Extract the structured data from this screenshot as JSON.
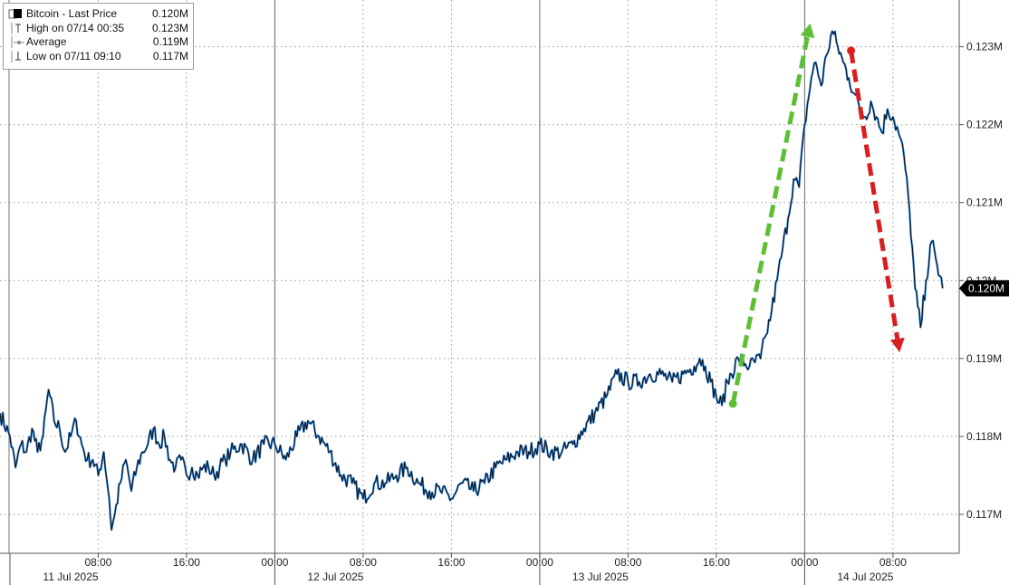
{
  "chart_data": {
    "type": "line",
    "title": "",
    "xlabel": "",
    "ylabel": "",
    "ylim": [
      0.1165,
      0.1236
    ],
    "grid": true,
    "legend_placement": "top-left",
    "legend": {
      "series_name": "Bitcoin - Last Price",
      "series_value": "0.120M",
      "high_label": "High on 07/14 00:35",
      "high_value": "0.123M",
      "average_label": "Average",
      "average_value": "0.119M",
      "low_label": "Low on 07/11 09:10",
      "low_value": "0.117M"
    },
    "y_ticks": [
      {
        "value": 0.123,
        "label": "0.123M"
      },
      {
        "value": 0.122,
        "label": "0.122M"
      },
      {
        "value": 0.121,
        "label": "0.121M"
      },
      {
        "value": 0.12,
        "label": "0.12M"
      },
      {
        "value": 0.119,
        "label": "0.119M"
      },
      {
        "value": 0.118,
        "label": "0.118M"
      },
      {
        "value": 0.117,
        "label": "0.117M"
      }
    ],
    "last_price_tag": "0.120M",
    "x_time_ticks": [
      {
        "hours": 8,
        "label": "08:00"
      },
      {
        "hours": 16,
        "label": "16:00"
      },
      {
        "hours": 24,
        "label": "00:00"
      },
      {
        "hours": 32,
        "label": "08:00"
      },
      {
        "hours": 40,
        "label": "16:00"
      },
      {
        "hours": 48,
        "label": "00:00"
      },
      {
        "hours": 56,
        "label": "08:00"
      },
      {
        "hours": 64,
        "label": "16:00"
      },
      {
        "hours": 72,
        "label": "00:00"
      },
      {
        "hours": 80,
        "label": "08:00"
      }
    ],
    "x_date_labels": [
      {
        "hours": 5.5,
        "label": "11 Jul 2025"
      },
      {
        "hours": 29.5,
        "label": "12 Jul 2025"
      },
      {
        "hours": 53.5,
        "label": "13 Jul 2025"
      },
      {
        "hours": 77.5,
        "label": "14 Jul 2025"
      }
    ],
    "x_range_hours": [
      -0.9,
      86
    ],
    "series": [
      {
        "name": "Bitcoin - Last Price",
        "x_hours": [
          -0.9,
          0,
          0.5,
          1,
          1.5,
          2,
          2.5,
          3,
          3.5,
          4,
          4.5,
          5,
          5.5,
          6,
          6.5,
          7,
          7.5,
          8,
          8.5,
          9,
          9.2,
          9.5,
          10,
          10.5,
          11,
          11.5,
          12,
          12.5,
          13,
          13.5,
          14,
          14.5,
          15,
          15.5,
          16,
          16.5,
          17,
          17.5,
          18,
          18.5,
          19,
          19.5,
          20,
          21,
          22,
          23,
          24,
          25,
          26,
          27,
          28,
          29,
          30,
          31,
          32,
          33,
          34,
          35,
          36,
          37,
          38,
          39,
          40,
          41,
          42,
          43,
          44,
          45,
          46,
          47,
          48,
          49,
          50,
          51,
          52,
          53,
          54,
          55,
          56,
          57,
          58,
          59,
          60,
          61,
          62,
          62.5,
          63,
          63.5,
          64,
          64.5,
          65,
          66,
          67,
          68,
          68.5,
          69,
          69.5,
          70,
          70.5,
          71,
          71.5,
          72,
          72.6,
          73,
          73.5,
          74,
          74.5,
          75,
          75.5,
          76,
          76.5,
          77,
          77.5,
          78,
          78.5,
          79,
          79.5,
          80,
          80.5,
          81,
          81.5,
          82,
          82.5,
          83,
          83.5,
          84,
          84.5
        ],
        "values": [
          0.1183,
          0.118,
          0.1176,
          0.1179,
          0.1178,
          0.1181,
          0.1178,
          0.118,
          0.1186,
          0.1182,
          0.1181,
          0.1178,
          0.118,
          0.1182,
          0.1179,
          0.1177,
          0.1177,
          0.1175,
          0.1178,
          0.1172,
          0.1168,
          0.117,
          0.1174,
          0.1177,
          0.1173,
          0.1176,
          0.1178,
          0.1179,
          0.1181,
          0.1179,
          0.118,
          0.1177,
          0.1176,
          0.1177,
          0.1175,
          0.1176,
          0.1175,
          0.1176,
          0.1176,
          0.1175,
          0.1176,
          0.1177,
          0.1178,
          0.1179,
          0.1177,
          0.1179,
          0.1179,
          0.1177,
          0.118,
          0.1182,
          0.118,
          0.1178,
          0.1175,
          0.1174,
          0.1172,
          0.1174,
          0.1174,
          0.1175,
          0.1176,
          0.1174,
          0.1173,
          0.1173,
          0.1172,
          0.1174,
          0.1173,
          0.1174,
          0.1176,
          0.1177,
          0.1178,
          0.1178,
          0.1179,
          0.1178,
          0.1178,
          0.1179,
          0.1181,
          0.1183,
          0.1185,
          0.1188,
          0.1187,
          0.1187,
          0.1188,
          0.1188,
          0.1187,
          0.1188,
          0.1189,
          0.119,
          0.1189,
          0.1187,
          0.1185,
          0.1184,
          0.1187,
          0.119,
          0.1189,
          0.119,
          0.1193,
          0.1196,
          0.12,
          0.1204,
          0.1208,
          0.1213,
          0.1212,
          0.122,
          0.1226,
          0.1228,
          0.1225,
          0.1229,
          0.1232,
          0.123,
          0.1228,
          0.1226,
          0.1224,
          0.1222,
          0.1221,
          0.1223,
          0.1221,
          0.1219,
          0.1222,
          0.1221,
          0.1219,
          0.1216,
          0.1209,
          0.1199,
          0.1194,
          0.12,
          0.1205,
          0.1202,
          0.1199
        ]
      }
    ],
    "annotations": [
      {
        "type": "arrow",
        "color": "#5cbf34",
        "from": {
          "hours": 65.5,
          "value": 0.11842
        },
        "to": {
          "hours": 72.5,
          "value": 0.1233
        }
      },
      {
        "type": "arrow",
        "color": "#d81e1e",
        "from": {
          "hours": 76.2,
          "value": 0.12295
        },
        "to": {
          "hours": 80.6,
          "value": 0.11908
        }
      }
    ]
  }
}
